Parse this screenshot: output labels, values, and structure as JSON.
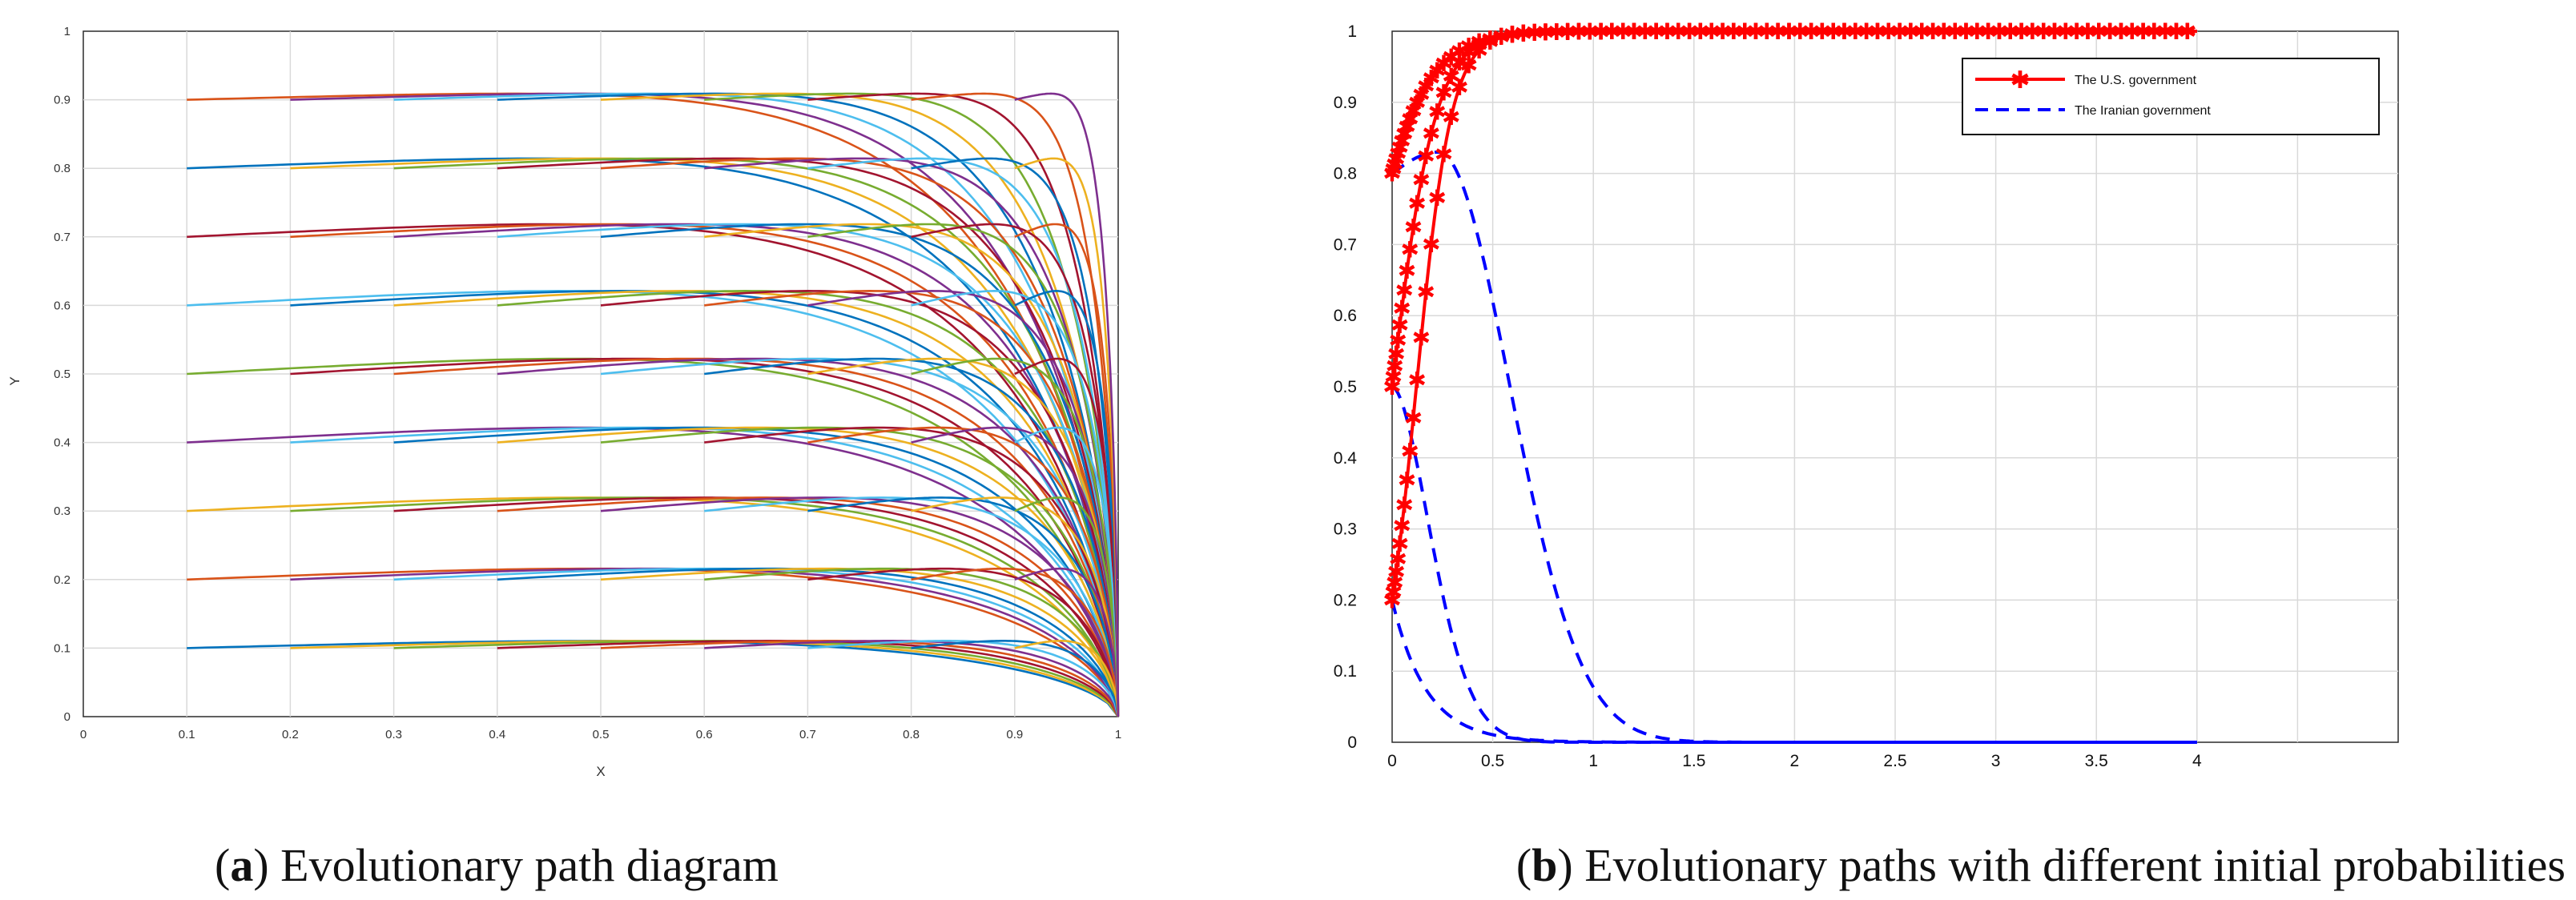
{
  "chart_data": [
    {
      "type": "line",
      "caption_label": "a",
      "caption_text": "Evolutionary path diagram",
      "xlabel": "X",
      "ylabel": "Y",
      "xlim": [
        0,
        1
      ],
      "ylim": [
        0,
        1
      ],
      "xticks": [
        "0",
        "0.1",
        "0.2",
        "0.3",
        "0.4",
        "0.5",
        "0.6",
        "0.7",
        "0.8",
        "0.9",
        "1"
      ],
      "yticks": [
        "0",
        "0.1",
        "0.2",
        "0.3",
        "0.4",
        "0.5",
        "0.6",
        "0.7",
        "0.8",
        "0.9",
        "1"
      ],
      "grid": true,
      "description_series": "Trajectories starting at x0 in {0.1..0.9}, y0 in {0.1..0.9}; each rises slightly then converges to (1, 0)",
      "start_x": [
        0.1,
        0.2,
        0.3,
        0.4,
        0.5,
        0.6,
        0.7,
        0.8,
        0.9
      ],
      "start_y": [
        0.1,
        0.2,
        0.3,
        0.4,
        0.5,
        0.6,
        0.7,
        0.8,
        0.9
      ],
      "end_point": [
        1,
        0
      ],
      "colors": [
        "#0072BD",
        "#D95319",
        "#EDB120",
        "#7E2F8E",
        "#77AC30",
        "#4DBEEE",
        "#A2142F"
      ]
    },
    {
      "type": "line",
      "caption_label": "b",
      "caption_text": "Evolutionary paths with different initial probabilities",
      "xlim": [
        0,
        5
      ],
      "ylim": [
        0,
        1
      ],
      "xticks": [
        "0",
        "0.5",
        "1",
        "1.5",
        "2",
        "2.5",
        "3",
        "3.5",
        "4"
      ],
      "yticks": [
        "0",
        "0.1",
        "0.2",
        "0.3",
        "0.4",
        "0.5",
        "0.6",
        "0.7",
        "0.8",
        "0.9",
        "1"
      ],
      "grid": true,
      "legend_position": "top-right",
      "series": [
        {
          "name": "The U.S. government",
          "style": "solid-star",
          "color": "#ff0000",
          "initial_values": [
            0.8,
            0.5,
            0.2
          ],
          "t_end": 4,
          "final_value": 1
        },
        {
          "name": "The Iranian government",
          "style": "dashed",
          "color": "#0000ff",
          "initial_values": [
            0.8,
            0.5,
            0.2
          ],
          "peak_value": 0.83,
          "t_end": 4,
          "final_value": 0
        }
      ]
    }
  ]
}
